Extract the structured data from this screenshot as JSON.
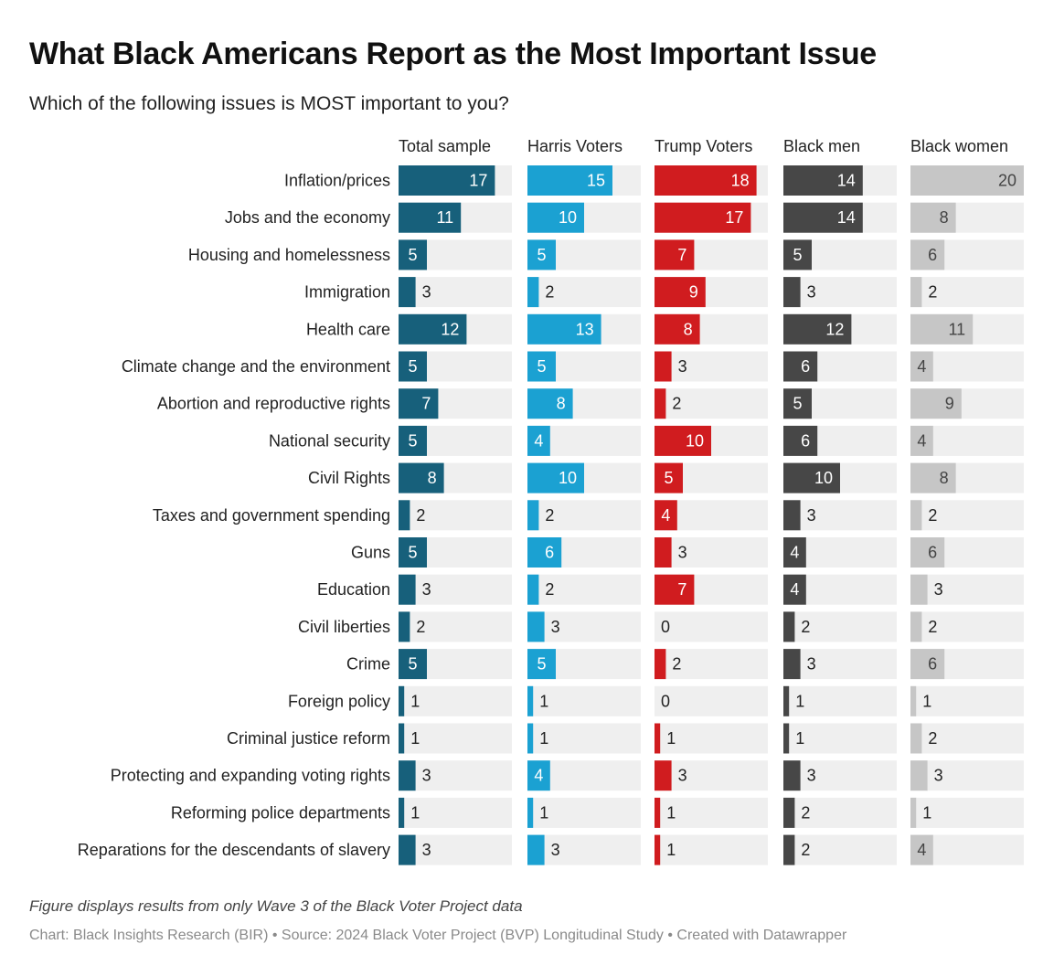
{
  "title": "What Black Americans Report as the Most Important Issue",
  "subtitle": "Which of the following issues is MOST important to you?",
  "notes": "Figure displays results from only Wave 3 of the Black Voter Project data",
  "footer": "Chart: Black Insights Research (BIR) • Source: 2024 Black Voter Project (BVP) Longitudinal Study • Created with Datawrapper",
  "chart_data": {
    "type": "bar",
    "title": "What Black Americans Report as the Most Important Issue",
    "subtitle": "Which of the following issues is MOST important to you?",
    "xlim": [
      0,
      20
    ],
    "categories": [
      "Inflation/prices",
      "Jobs and the economy",
      "Housing and homelessness",
      "Immigration",
      "Health care",
      "Climate change and the environment",
      "Abortion and reproductive rights",
      "National security",
      "Civil Rights",
      "Taxes and government spending",
      "Guns",
      "Education",
      "Civil liberties",
      "Crime",
      "Foreign policy",
      "Criminal justice reform",
      "Protecting and expanding voting rights",
      "Reforming police departments",
      "Reparations for the descendants of slavery"
    ],
    "series": [
      {
        "name": "Total sample",
        "color": "#17607b",
        "label_color": "#ffffff",
        "light": false,
        "values": [
          17,
          11,
          5,
          3,
          12,
          5,
          7,
          5,
          8,
          2,
          5,
          3,
          2,
          5,
          1,
          1,
          3,
          1,
          3
        ]
      },
      {
        "name": "Harris Voters",
        "color": "#1ba1d2",
        "label_color": "#ffffff",
        "light": false,
        "values": [
          15,
          10,
          5,
          2,
          13,
          5,
          8,
          4,
          10,
          2,
          6,
          2,
          3,
          5,
          1,
          1,
          4,
          1,
          3
        ]
      },
      {
        "name": "Trump Voters",
        "color": "#d01c1f",
        "label_color": "#ffffff",
        "light": false,
        "values": [
          18,
          17,
          7,
          9,
          8,
          3,
          2,
          10,
          5,
          4,
          3,
          7,
          0,
          2,
          0,
          1,
          3,
          1,
          1
        ]
      },
      {
        "name": "Black men",
        "color": "#474747",
        "label_color": "#ffffff",
        "light": false,
        "values": [
          14,
          14,
          5,
          3,
          12,
          6,
          5,
          6,
          10,
          3,
          4,
          4,
          2,
          3,
          1,
          1,
          3,
          2,
          2
        ]
      },
      {
        "name": "Black women",
        "color": "#c6c6c6",
        "label_color": "#444444",
        "light": true,
        "values": [
          20,
          8,
          6,
          2,
          11,
          4,
          9,
          4,
          8,
          2,
          6,
          3,
          2,
          6,
          1,
          2,
          3,
          1,
          4
        ]
      }
    ],
    "colors": {
      "track": "#efefef",
      "text": "#222222"
    }
  }
}
